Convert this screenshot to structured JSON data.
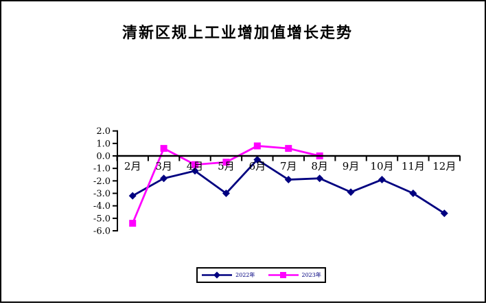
{
  "frame": {
    "background": "#FFFFFF",
    "border_color": "#000000"
  },
  "chart_data": {
    "type": "line",
    "title": "清新区规上工业增加值增长走势",
    "xlabel": "",
    "ylabel": "",
    "categories": [
      "2月",
      "3月",
      "4月",
      "5月",
      "6月",
      "7月",
      "8月",
      "9月",
      "10月",
      "11月",
      "12月"
    ],
    "series": [
      {
        "name": "2022年",
        "color": "#000080",
        "marker": "diamond",
        "values": [
          -3.2,
          -1.8,
          -1.2,
          -3.0,
          -0.3,
          -1.9,
          -1.8,
          -2.9,
          -1.9,
          -3.0,
          -4.6
        ]
      },
      {
        "name": "2023年",
        "color": "#FF00FF",
        "marker": "square",
        "values": [
          -5.4,
          0.6,
          -0.7,
          -0.5,
          0.8,
          0.6,
          0.0,
          null,
          null,
          null,
          null
        ]
      }
    ],
    "ytick_labels": [
      "2.0",
      "1.0",
      "0.0",
      "-1.0",
      "-2.0",
      "-3.0",
      "-4.0",
      "-5.0",
      "-6.0"
    ],
    "ylim": [
      -6.0,
      2.0
    ],
    "grid": false,
    "legend_position": "bottom",
    "axis_color": "#000000",
    "tick_label_color": "#000000"
  }
}
